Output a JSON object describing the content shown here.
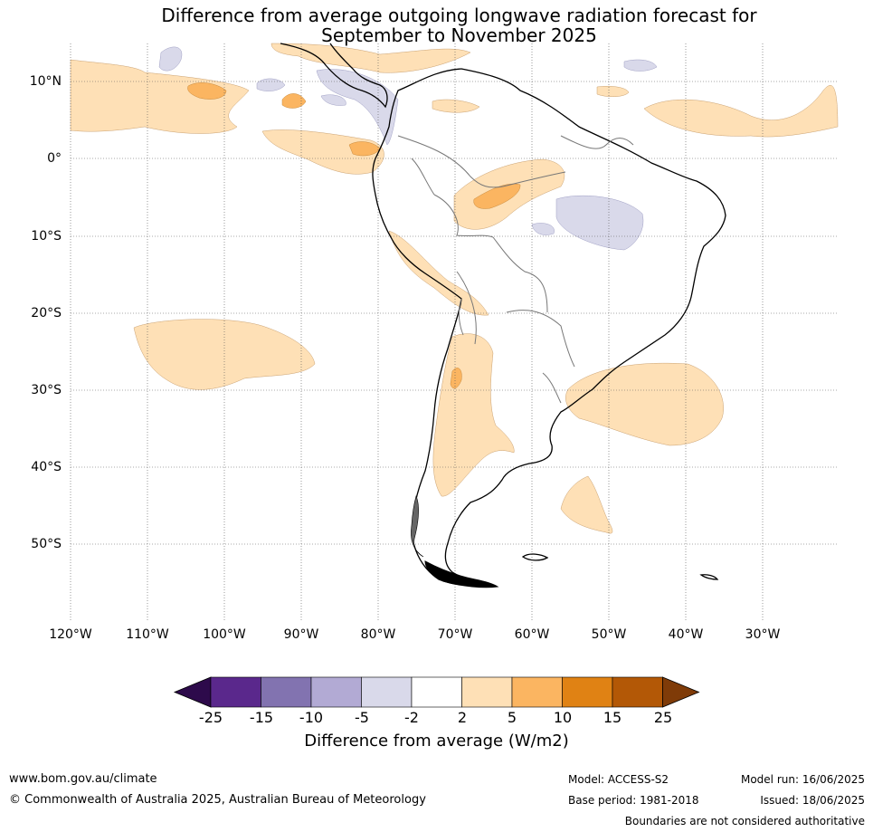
{
  "title": {
    "line1": "Difference from average outgoing longwave radiation forecast for",
    "line2": "September to November 2025"
  },
  "lat_labels": [
    "10°N",
    "0°",
    "10°S",
    "20°S",
    "30°S",
    "40°S",
    "50°S"
  ],
  "lon_labels": [
    "120°W",
    "110°W",
    "100°W",
    "90°W",
    "80°W",
    "70°W",
    "60°W",
    "50°W",
    "40°W",
    "30°W"
  ],
  "colorbar": {
    "ticks": [
      "-25",
      "-15",
      "-10",
      "-5",
      "-2",
      "2",
      "5",
      "10",
      "15",
      "25"
    ],
    "colors": [
      "#2d0a4b",
      "#5a288c",
      "#8273b0",
      "#b2aad4",
      "#d9d9ea",
      "#ffffff",
      "#fee0b6",
      "#fbb561",
      "#e08214",
      "#b35806",
      "#7f3b08"
    ],
    "label": "Difference from average (W/m2)"
  },
  "footer": {
    "website": "www.bom.gov.au/climate",
    "copyright": "© Commonwealth of Australia 2025, Australian Bureau of Meteorology",
    "model": "Model: ACCESS-S2",
    "base_period": "Base period: 1981-2018",
    "model_run": "Model run: 16/06/2025",
    "issued": "Issued: 18/06/2025",
    "disclaimer": "Boundaries are not considered authoritative"
  }
}
